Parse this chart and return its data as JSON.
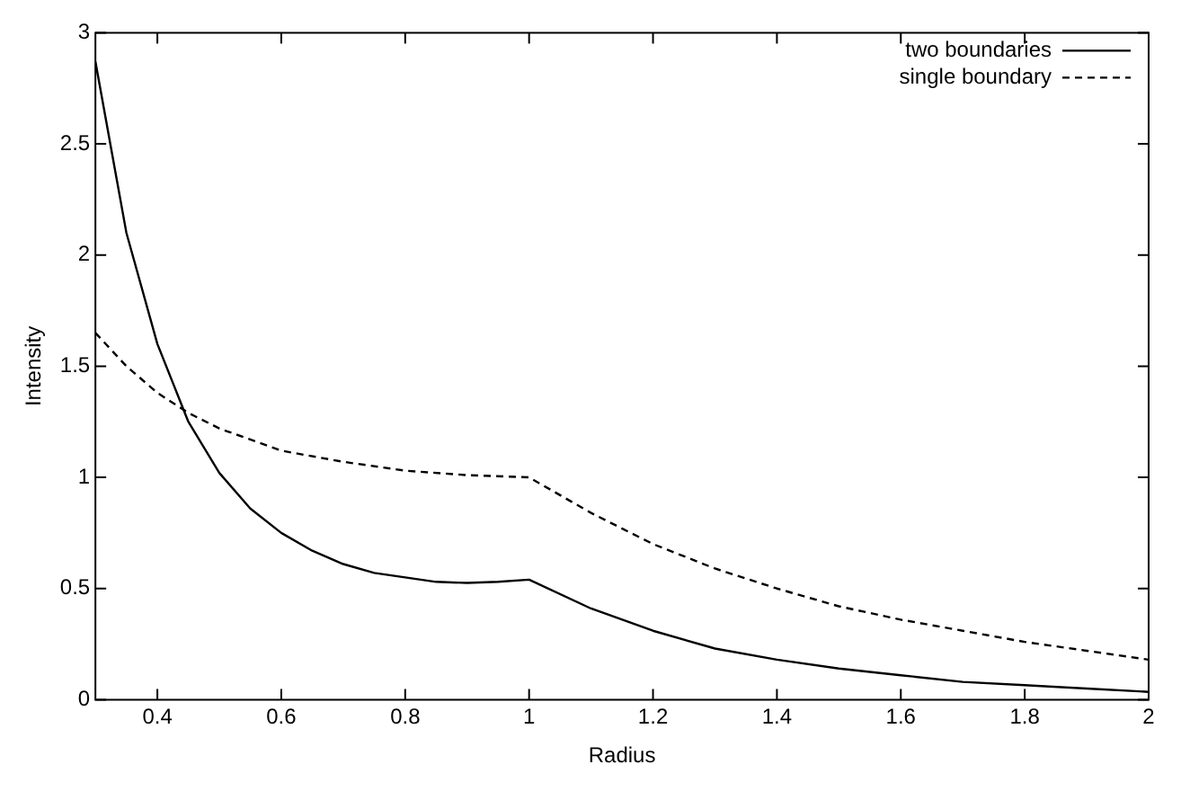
{
  "chart_data": {
    "type": "line",
    "xlabel": "Radius",
    "ylabel": "Intensity",
    "xlim": [
      0.3,
      2
    ],
    "xticks": [
      0.4,
      0.6,
      0.8,
      1,
      1.2,
      1.4,
      1.6,
      1.8,
      2
    ],
    "ylim": [
      0,
      3
    ],
    "yticks": [
      0,
      0.5,
      1,
      1.5,
      2,
      2.5,
      3
    ],
    "grid": false,
    "legend": "top right",
    "marker": "none",
    "series": [
      {
        "name": "two boundaries",
        "color": "#000000",
        "line_style": "solid",
        "x": [
          0.3,
          0.35,
          0.4,
          0.45,
          0.5,
          0.55,
          0.6,
          0.65,
          0.7,
          0.75,
          0.8,
          0.85,
          0.9,
          0.95,
          1,
          1.1,
          1.2,
          1.3,
          1.4,
          1.5,
          1.6,
          1.7,
          1.8,
          1.9,
          2
        ],
        "values": [
          2.87,
          2.1,
          1.6,
          1.25,
          1.02,
          0.86,
          0.75,
          0.67,
          0.61,
          0.57,
          0.55,
          0.53,
          0.525,
          0.53,
          0.54,
          0.41,
          0.31,
          0.23,
          0.18,
          0.14,
          0.11,
          0.08,
          0.065,
          0.05,
          0.035
        ]
      },
      {
        "name": "single boundary",
        "color": "#000000",
        "line_style": "dashed",
        "x": [
          0.3,
          0.35,
          0.4,
          0.45,
          0.5,
          0.6,
          0.7,
          0.8,
          0.9,
          1,
          1.1,
          1.2,
          1.3,
          1.4,
          1.5,
          1.6,
          1.7,
          1.8,
          1.9,
          2
        ],
        "values": [
          1.65,
          1.5,
          1.38,
          1.29,
          1.22,
          1.12,
          1.07,
          1.03,
          1.01,
          1,
          0.84,
          0.7,
          0.59,
          0.5,
          0.42,
          0.36,
          0.31,
          0.26,
          0.22,
          0.18
        ]
      }
    ]
  }
}
